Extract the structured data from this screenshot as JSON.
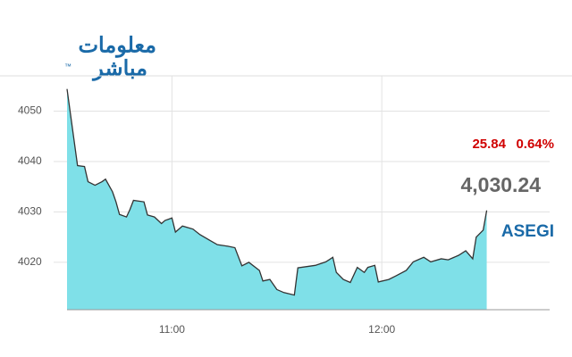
{
  "logo": {
    "line1": "معلومات",
    "line2": "مباشر",
    "mark": "™"
  },
  "quote": {
    "change": "25.84",
    "change_pct": "0.64%",
    "price": "4,030.24",
    "symbol": "ASEGI"
  },
  "chart_data": {
    "type": "area",
    "fill": "#7fe0e8",
    "line_color": "#333333",
    "grid": true,
    "x": [
      "10:30",
      "10:33",
      "10:35",
      "10:36",
      "10:38",
      "10:40",
      "10:41",
      "10:43",
      "10:44",
      "10:45",
      "10:47",
      "10:48",
      "10:49",
      "10:52",
      "10:53",
      "10:55",
      "10:57",
      "10:58",
      "11:00",
      "11:01",
      "11:03",
      "11:06",
      "11:08",
      "11:11",
      "11:13",
      "11:16",
      "11:18",
      "11:20",
      "11:22",
      "11:25",
      "11:26",
      "11:28",
      "11:30",
      "11:32",
      "11:35",
      "11:36",
      "11:39",
      "11:41",
      "11:44",
      "11:46",
      "11:47",
      "11:49",
      "11:51",
      "11:53",
      "11:55",
      "11:56",
      "11:58",
      "11:59",
      "12:02",
      "12:04",
      "12:07",
      "12:09",
      "12:12",
      "12:14",
      "12:17",
      "12:19",
      "12:22",
      "12:24",
      "12:26",
      "12:27",
      "12:29",
      "12:30"
    ],
    "values": [
      4054.4,
      4039.2,
      4039,
      4036,
      4035.3,
      4036,
      4036.5,
      4034,
      4032,
      4029.5,
      4029,
      4030.5,
      4032.3,
      4032,
      4029.4,
      4029,
      4027.7,
      4028.3,
      4028.8,
      4026,
      4027.2,
      4026.6,
      4025.5,
      4024.3,
      4023.5,
      4023.2,
      4022.9,
      4019.3,
      4020,
      4018.4,
      4016.3,
      4016.6,
      4014.6,
      4014,
      4013.5,
      4018.9,
      4019.2,
      4019.4,
      4020.1,
      4021,
      4018,
      4016.6,
      4016,
      4019,
      4018,
      4019,
      4019.4,
      4016.1,
      4016.6,
      4017.3,
      4018.4,
      4020.1,
      4021,
      4020.1,
      4020.7,
      4020.5,
      4021.4,
      4022.3,
      4020.7,
      4025,
      4026.4,
      4030.3
    ],
    "xlim": [
      "10:30",
      "12:48"
    ],
    "xticks": [
      "11:00",
      "12:00"
    ],
    "ylim": [
      4010.6,
      4057
    ],
    "yticks": [
      4020,
      4030,
      4040,
      4050
    ]
  }
}
